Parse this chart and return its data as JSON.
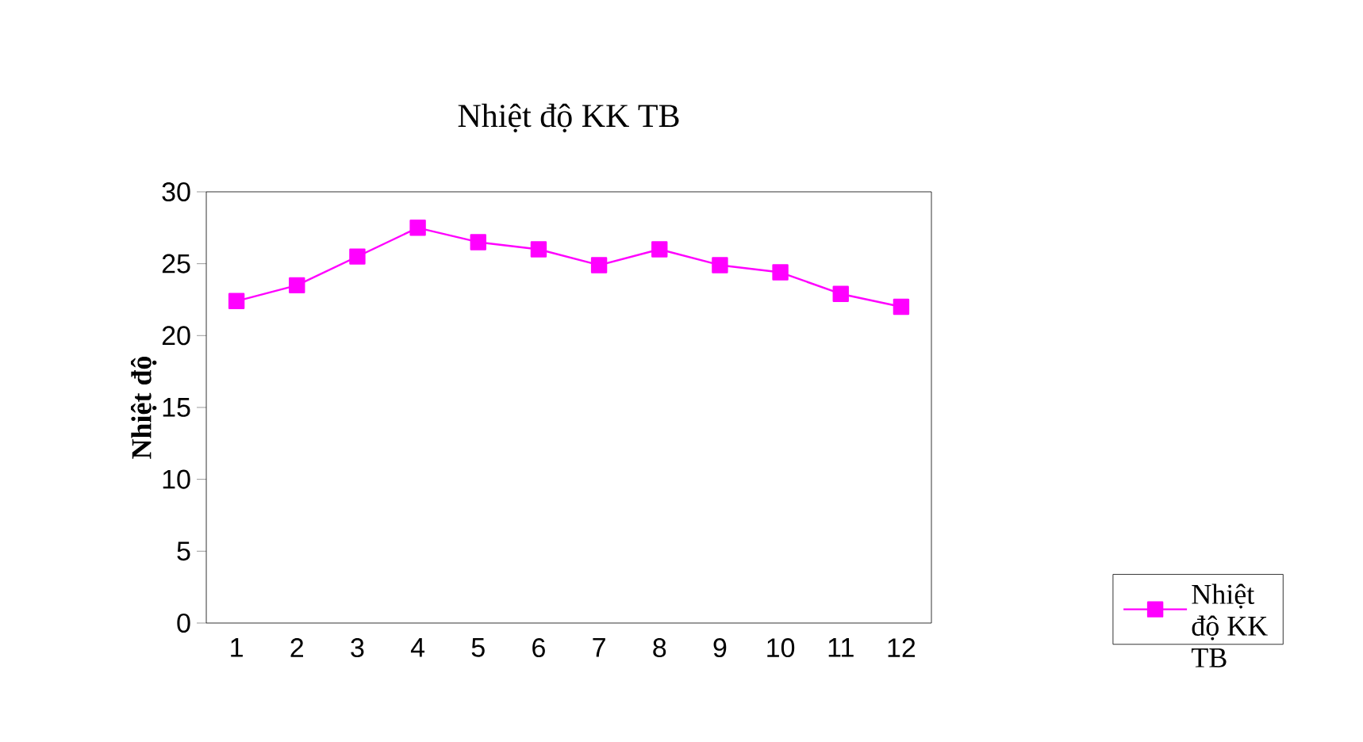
{
  "chart_data": {
    "type": "line",
    "title": "Nhiệt độ KK TB",
    "ylabel": "Nhiệt độ",
    "categories": [
      "1",
      "2",
      "3",
      "4",
      "5",
      "6",
      "7",
      "8",
      "9",
      "10",
      "11",
      "12"
    ],
    "series": [
      {
        "name": "Nhiệt độ KK TB",
        "color": "#ff00ff",
        "values": [
          22.4,
          23.5,
          25.5,
          27.5,
          26.5,
          26.0,
          24.9,
          26.0,
          24.9,
          24.4,
          22.9,
          22.0
        ]
      }
    ],
    "ylim": [
      0,
      30
    ],
    "yticks": [
      0,
      5,
      10,
      15,
      20,
      25,
      30
    ],
    "marker": "square",
    "legend": "bottom right"
  }
}
